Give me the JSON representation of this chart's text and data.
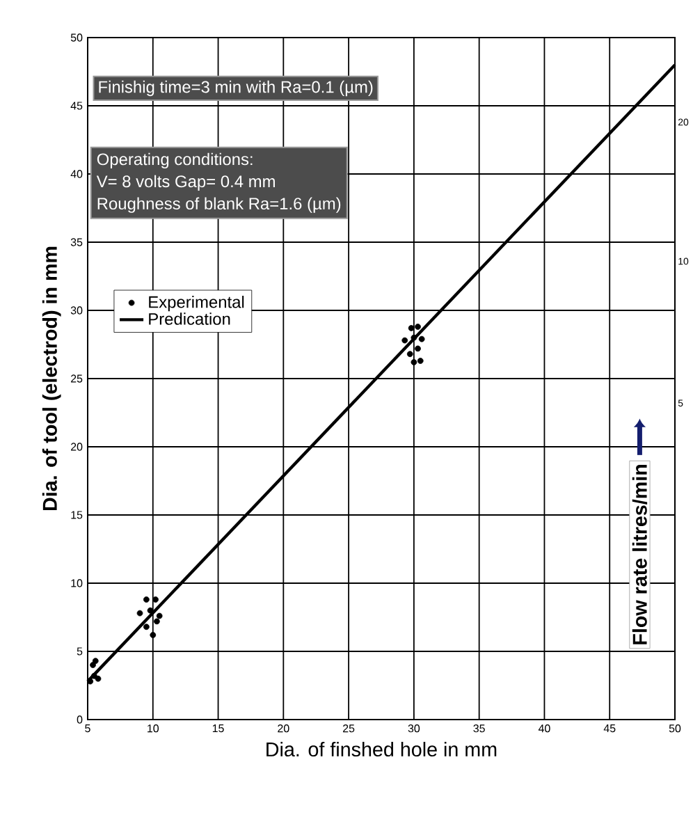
{
  "chart_data": {
    "type": "scatter",
    "xlabel": "Dia. of  finshed hole in mm",
    "ylabel": "Dia. of  tool (electrod) in mm",
    "annotations": [
      "Finishig time=3 min with Ra=0.1 (µm)",
      "Operating conditions:",
      "V= 8 volts    Gap= 0.4 mm",
      "Roughness of blank   Ra=1.6 (µm)",
      "20",
      "10",
      "5",
      "Flow rate  litres/min"
    ],
    "xlim": [
      5,
      50
    ],
    "ylim": [
      0,
      50
    ],
    "xticks": [
      5,
      10,
      15,
      20,
      25,
      30,
      35,
      40,
      45,
      50
    ],
    "yticks": [
      0,
      5,
      10,
      15,
      20,
      25,
      30,
      35,
      40,
      45,
      50
    ],
    "grid": true,
    "legend": "top left",
    "series": [
      {
        "name": "Experimental",
        "marker": "circle",
        "color": "#000000",
        "x": [
          5.2,
          5.5,
          5.8,
          5.4,
          5.6,
          9.0,
          9.5,
          10.2,
          9.8,
          10.5,
          9.5,
          10.0,
          10.3,
          29.3,
          29.8,
          30.3,
          30.0,
          30.6,
          30.3,
          29.7,
          30.5,
          30.0
        ],
        "values": [
          2.8,
          3.2,
          3.0,
          4.0,
          4.3,
          7.8,
          8.8,
          8.8,
          8.0,
          7.6,
          6.8,
          6.2,
          7.2,
          27.8,
          28.7,
          28.8,
          28.0,
          27.9,
          27.2,
          26.8,
          26.3,
          26.2
        ]
      },
      {
        "name": "Predication",
        "type": "line",
        "marker": "none",
        "color": "#000000",
        "x": [
          5,
          50
        ],
        "values": [
          2.8,
          48
        ]
      }
    ]
  }
}
